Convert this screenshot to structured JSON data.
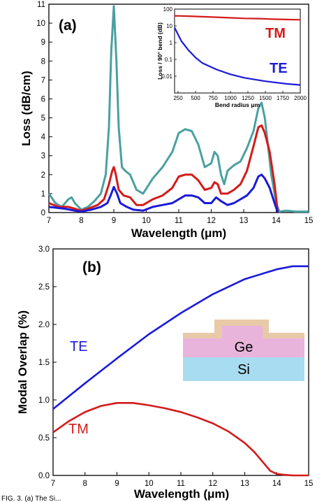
{
  "colors": {
    "te": "#1a1adb",
    "tm": "#d41a1a",
    "total": "#4aa0a0",
    "ge": "#e8b4dc",
    "si": "#a8dcf0",
    "cap": "#e8c9a8"
  },
  "caption": "FIG. 3. (a) The Si...",
  "chart_data": [
    {
      "type": "line",
      "panel_label": "(a)",
      "xlabel": "Wavelength (μm)",
      "ylabel": "Loss (dB/cm)",
      "xlim": [
        7,
        15
      ],
      "ylim": [
        0,
        11
      ],
      "xticks": [
        "7",
        "8",
        "9",
        "10",
        "11",
        "12",
        "13",
        "14",
        "15"
      ],
      "yticks": [
        "0",
        "1",
        "2",
        "3",
        "4",
        "5",
        "6",
        "7",
        "8",
        "9",
        "10",
        "11"
      ],
      "series": [
        {
          "key": "total",
          "x": [
            7,
            7.2,
            7.4,
            7.6,
            7.7,
            7.8,
            8,
            8.2,
            8.4,
            8.6,
            8.75,
            8.85,
            8.92,
            9,
            9.08,
            9.15,
            9.25,
            9.35,
            9.5,
            9.7,
            9.9,
            10.2,
            10.5,
            10.8,
            11,
            11.2,
            11.4,
            11.6,
            11.8,
            12,
            12.1,
            12.2,
            12.3,
            12.4,
            12.5,
            12.7,
            12.9,
            13.1,
            13.3,
            13.45,
            13.55,
            13.65,
            13.75,
            13.85,
            14,
            14.1,
            14.3,
            14.6,
            15
          ],
          "y": [
            1.0,
            0.5,
            0.3,
            0.7,
            0.8,
            0.5,
            0.15,
            0.3,
            0.6,
            1.0,
            2.0,
            4.5,
            8.5,
            10.9,
            8.0,
            4.5,
            2.4,
            2.2,
            2.0,
            1.2,
            1.0,
            1.8,
            2.4,
            3.2,
            4.2,
            4.4,
            4.3,
            3.6,
            2.4,
            2.6,
            3.2,
            3.0,
            2.0,
            1.5,
            2.2,
            2.5,
            2.7,
            3.4,
            4.3,
            5.5,
            5.8,
            5.0,
            3.5,
            2.0,
            0.5,
            0.05,
            0.1,
            0.05,
            0.05
          ]
        },
        {
          "key": "tm",
          "x": [
            7,
            7.3,
            7.6,
            7.8,
            8,
            8.2,
            8.5,
            8.7,
            8.85,
            8.95,
            9,
            9.05,
            9.15,
            9.3,
            9.5,
            9.7,
            9.9,
            10.2,
            10.5,
            10.8,
            11,
            11.2,
            11.4,
            11.6,
            11.8,
            12,
            12.1,
            12.2,
            12.3,
            12.5,
            12.7,
            12.9,
            13.1,
            13.3,
            13.45,
            13.55,
            13.65,
            13.8,
            13.95,
            14.05
          ],
          "y": [
            0.5,
            0.3,
            0.3,
            0.2,
            0.1,
            0.2,
            0.4,
            0.7,
            1.5,
            2.2,
            2.4,
            2.1,
            1.2,
            0.9,
            0.8,
            0.4,
            0.4,
            0.7,
            0.9,
            1.3,
            1.9,
            2.0,
            2.0,
            1.7,
            1.2,
            1.3,
            1.6,
            1.5,
            1.0,
            1.0,
            1.2,
            1.5,
            2.2,
            3.5,
            4.5,
            4.6,
            4.2,
            3.2,
            1.5,
            0.0
          ]
        },
        {
          "key": "te",
          "x": [
            7,
            7.5,
            7.8,
            8,
            8.3,
            8.6,
            8.8,
            8.9,
            9,
            9.1,
            9.2,
            9.4,
            9.6,
            9.9,
            10.2,
            10.5,
            10.8,
            11,
            11.2,
            11.4,
            11.6,
            11.8,
            12,
            12.15,
            12.3,
            12.5,
            12.7,
            12.9,
            13.1,
            13.3,
            13.45,
            13.55,
            13.65,
            13.8,
            13.95,
            14.05
          ],
          "y": [
            0.3,
            0.2,
            0.1,
            0.05,
            0.15,
            0.3,
            0.5,
            0.9,
            1.35,
            1.0,
            0.5,
            0.3,
            0.15,
            0.1,
            0.3,
            0.4,
            0.5,
            0.7,
            0.9,
            0.9,
            0.8,
            0.5,
            0.5,
            0.8,
            0.6,
            0.4,
            0.5,
            0.7,
            0.9,
            1.3,
            1.9,
            2.0,
            1.8,
            1.3,
            0.5,
            0.0
          ]
        }
      ],
      "inset": {
        "xlabel": "Bend radius μm",
        "ylabel": "Loss / 90° bend (dB)",
        "xlim": [
          200,
          2000
        ],
        "ylim_log": [
          0.001,
          100
        ],
        "xticks": [
          "250",
          "500",
          "750",
          "1000",
          "1250",
          "1500",
          "1750",
          "2000"
        ],
        "yticks": [
          "0.01",
          "0.1",
          "1",
          "10",
          "100"
        ],
        "series": [
          {
            "key": "tm",
            "name": "TM",
            "x": [
              200,
              400,
              600,
              800,
              1000,
              1200,
              1400,
              1600,
              1800,
              2000
            ],
            "y": [
              40,
              38,
              35,
              33,
              30,
              28,
              27,
              25,
              24,
              23
            ]
          },
          {
            "key": "te",
            "name": "TE",
            "x": [
              200,
              250,
              300,
              400,
              500,
              600,
              800,
              1000,
              1200,
              1500,
              1800,
              2000
            ],
            "y": [
              8,
              3,
              1.2,
              0.35,
              0.13,
              0.06,
              0.025,
              0.013,
              0.008,
              0.005,
              0.0035,
              0.003
            ]
          }
        ]
      }
    },
    {
      "type": "line",
      "panel_label": "(b)",
      "xlabel": "Wavelength (μm)",
      "ylabel": "Modal Overlap (%)",
      "xlim": [
        7,
        15
      ],
      "ylim": [
        0,
        3.0
      ],
      "xticks": [
        "7",
        "8",
        "9",
        "10",
        "11",
        "12",
        "13",
        "14",
        "15"
      ],
      "yticks": [
        "0.0",
        "0.5",
        "1.0",
        "1.5",
        "2.0",
        "2.5",
        "3.0"
      ],
      "series": [
        {
          "key": "te",
          "name": "TE",
          "x": [
            7,
            8,
            9,
            10,
            11,
            12,
            13,
            14,
            14.5,
            15
          ],
          "y": [
            0.88,
            1.22,
            1.55,
            1.87,
            2.15,
            2.4,
            2.6,
            2.73,
            2.77,
            2.77
          ]
        },
        {
          "key": "tm",
          "name": "TM",
          "x": [
            7,
            7.5,
            8,
            8.5,
            9,
            9.5,
            10,
            10.5,
            11,
            11.5,
            12,
            12.5,
            13,
            13.3,
            13.6,
            13.8,
            14,
            14.2,
            14.5,
            15
          ],
          "y": [
            0.57,
            0.72,
            0.84,
            0.92,
            0.96,
            0.96,
            0.93,
            0.89,
            0.84,
            0.77,
            0.69,
            0.58,
            0.43,
            0.31,
            0.16,
            0.06,
            0.02,
            0.01,
            0.0,
            0.0
          ]
        }
      ],
      "inset_labels": {
        "ge": "Ge",
        "si": "Si"
      }
    }
  ]
}
